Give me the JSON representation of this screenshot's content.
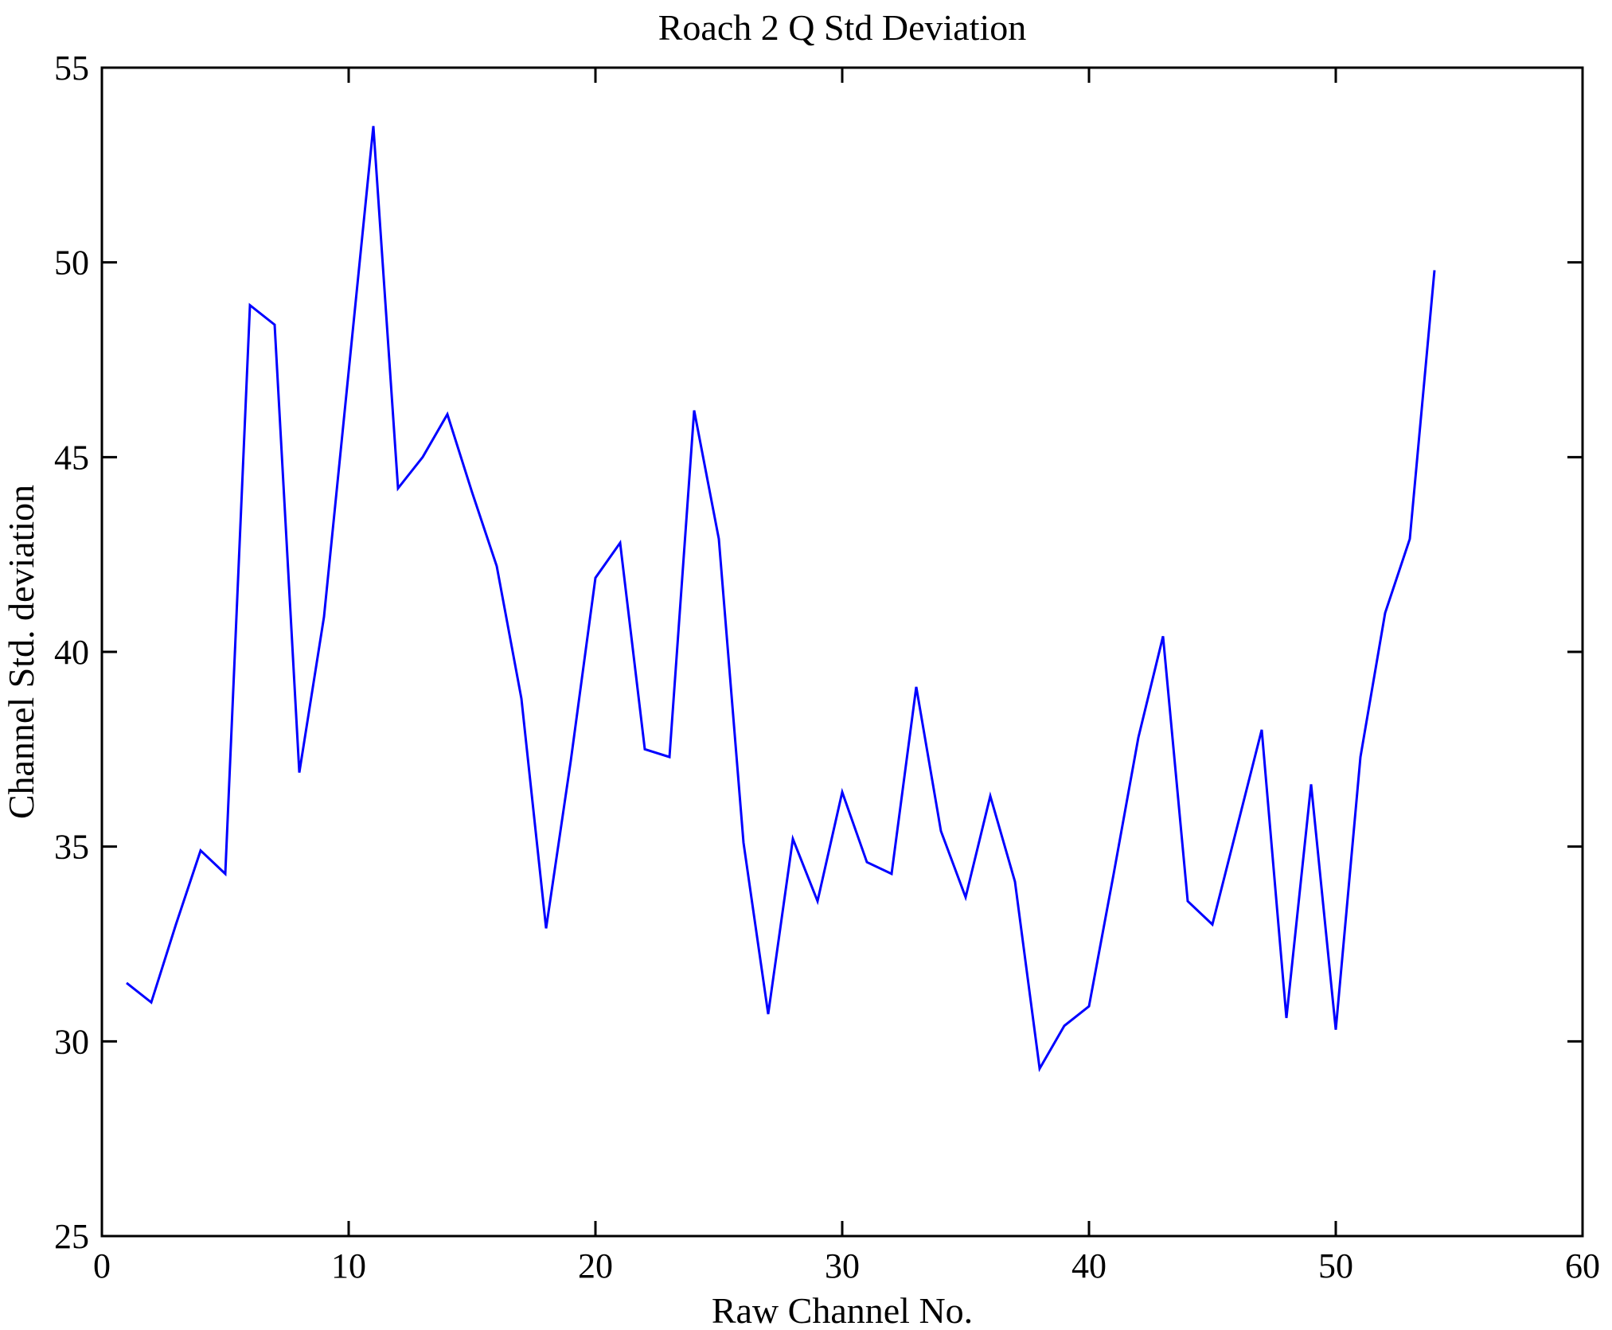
{
  "chart_data": {
    "type": "line",
    "title": "Roach 2 Q Std Deviation",
    "xlabel": "Raw Channel No.",
    "ylabel": "Channel Std. deviation",
    "xlim": [
      0,
      60
    ],
    "ylim": [
      25,
      55
    ],
    "x_ticks": [
      0,
      10,
      20,
      30,
      40,
      50,
      60
    ],
    "y_ticks": [
      25,
      30,
      35,
      40,
      45,
      50,
      55
    ],
    "grid": false,
    "legend": "none",
    "line_color": "#0000ff",
    "axis_color": "#000000",
    "background_color": "#ffffff",
    "x": [
      1,
      2,
      3,
      4,
      5,
      6,
      7,
      8,
      9,
      10,
      11,
      12,
      13,
      14,
      15,
      16,
      17,
      18,
      19,
      20,
      21,
      22,
      23,
      24,
      25,
      26,
      27,
      28,
      29,
      30,
      31,
      32,
      33,
      34,
      35,
      36,
      37,
      38,
      39,
      40,
      41,
      42,
      43,
      44,
      45,
      46,
      47,
      48,
      49,
      50,
      51,
      52,
      53,
      54
    ],
    "values": [
      31.5,
      31.0,
      33.0,
      34.9,
      34.3,
      48.9,
      48.4,
      36.9,
      40.9,
      47.2,
      53.5,
      44.2,
      45.0,
      46.1,
      44.1,
      42.2,
      38.8,
      32.9,
      37.2,
      41.9,
      42.8,
      37.5,
      37.3,
      46.2,
      42.9,
      35.1,
      30.7,
      35.2,
      33.6,
      36.4,
      34.6,
      34.3,
      39.1,
      35.4,
      33.7,
      36.3,
      34.1,
      29.3,
      30.4,
      30.9,
      34.3,
      37.8,
      40.4,
      33.6,
      33.0,
      35.5,
      38.0,
      30.6,
      36.6,
      30.3,
      37.3,
      41.0,
      42.9,
      49.8
    ]
  }
}
